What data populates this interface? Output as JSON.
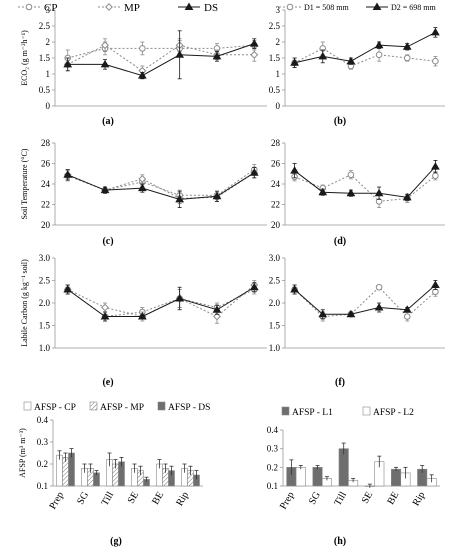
{
  "panels": {
    "a": {
      "label": "(a)"
    },
    "b": {
      "label": "(b)"
    },
    "c": {
      "label": "(c)"
    },
    "d": {
      "label": "(d)"
    },
    "e": {
      "label": "(e)"
    },
    "f": {
      "label": "(f)"
    },
    "g": {
      "label": "(g)"
    },
    "h": {
      "label": "(h)"
    }
  },
  "colors": {
    "black": "#1a1a1a",
    "grey": "#8a8a8a",
    "hatch": "#b5b5b5",
    "dark_bar": "#6e6e6e",
    "white": "#ffffff"
  },
  "chart_data": [
    {
      "id": "a",
      "type": "line",
      "ylabel": "ECO₂ (g m⁻²h⁻¹)",
      "ylim": [
        0,
        3
      ],
      "yticks": [
        "0",
        "0.5",
        "1",
        "1.5",
        "2",
        "2.5",
        "3"
      ],
      "legend": {
        "position": "top",
        "entries": [
          "CP",
          "MP",
          "DS"
        ]
      },
      "series": [
        {
          "name": "CP",
          "marker": "open-circle",
          "line": "dotted",
          "values": [
            1.5,
            1.8,
            1.8,
            1.8,
            1.8,
            1.9
          ],
          "err": [
            0.25,
            0.2,
            0.2,
            0.25,
            0.15,
            0.15
          ]
        },
        {
          "name": "MP",
          "marker": "open-diamond",
          "line": "dotted",
          "values": [
            1.3,
            1.9,
            1.1,
            1.9,
            1.6,
            1.6
          ],
          "err": [
            0.2,
            0.2,
            0.15,
            0.2,
            0.15,
            0.2
          ]
        },
        {
          "name": "DS",
          "marker": "filled-triangle",
          "line": "solid",
          "values": [
            1.3,
            1.3,
            0.95,
            1.6,
            1.55,
            1.95
          ],
          "err": [
            0.2,
            0.15,
            0.1,
            0.75,
            0.15,
            0.15
          ]
        }
      ]
    },
    {
      "id": "b",
      "type": "line",
      "ylim": [
        0,
        3
      ],
      "yticks": [
        "0",
        "0.5",
        "1",
        "1.5",
        "2",
        "2.5",
        "3"
      ],
      "legend": {
        "position": "top",
        "entries": [
          "D1 = 508 mm",
          "D2 = 698 mm"
        ]
      },
      "series": [
        {
          "name": "D1 = 508 mm",
          "marker": "open-circle",
          "line": "dotted",
          "values": [
            1.35,
            1.8,
            1.25,
            1.6,
            1.5,
            1.4
          ],
          "err": [
            0.15,
            0.2,
            0.1,
            0.2,
            0.1,
            0.15
          ]
        },
        {
          "name": "D2 = 698 mm",
          "marker": "filled-triangle",
          "line": "solid",
          "values": [
            1.35,
            1.55,
            1.4,
            1.9,
            1.85,
            2.3
          ],
          "err": [
            0.15,
            0.2,
            0.1,
            0.1,
            0.1,
            0.15
          ]
        }
      ]
    },
    {
      "id": "c",
      "type": "line",
      "ylabel": "Soil Temperature (°C)",
      "ylim": [
        20,
        28
      ],
      "yticks": [
        "20",
        "22",
        "24",
        "26",
        "28"
      ],
      "series": [
        {
          "name": "CP",
          "marker": "open-circle",
          "line": "dotted",
          "values": [
            24.8,
            23.4,
            24.2,
            22.9,
            22.9,
            25.4
          ],
          "err": [
            0.5,
            0.3,
            0.4,
            0.5,
            0.4,
            0.5
          ]
        },
        {
          "name": "MP",
          "marker": "open-diamond",
          "line": "dotted",
          "values": [
            24.9,
            23.4,
            24.5,
            22.6,
            22.7,
            25.1
          ],
          "err": [
            0.5,
            0.3,
            0.4,
            0.5,
            0.4,
            0.5
          ]
        },
        {
          "name": "DS",
          "marker": "filled-triangle",
          "line": "solid",
          "values": [
            24.9,
            23.4,
            23.6,
            22.5,
            22.8,
            25.1
          ],
          "err": [
            0.5,
            0.3,
            0.4,
            0.8,
            0.5,
            0.5
          ]
        }
      ]
    },
    {
      "id": "d",
      "type": "line",
      "ylim": [
        20,
        28
      ],
      "yticks": [
        "20",
        "22",
        "24",
        "26",
        "28"
      ],
      "series": [
        {
          "name": "D1 = 508 mm",
          "marker": "open-circle",
          "line": "dotted",
          "values": [
            24.7,
            23.6,
            24.9,
            22.3,
            22.6,
            24.8
          ],
          "err": [
            0.4,
            0.3,
            0.4,
            0.6,
            0.4,
            0.4
          ]
        },
        {
          "name": "D2 = 698 mm",
          "marker": "filled-triangle",
          "line": "solid",
          "values": [
            25.3,
            23.2,
            23.1,
            23.1,
            22.7,
            25.7
          ],
          "err": [
            0.7,
            0.3,
            0.3,
            0.6,
            0.3,
            0.6
          ]
        }
      ]
    },
    {
      "id": "e",
      "type": "line",
      "ylabel": "Labile Carbon (g kg⁻¹ soil)",
      "ylim": [
        1,
        3
      ],
      "yticks": [
        "1.0",
        "1.5",
        "2.0",
        "2.5",
        "3.0"
      ],
      "series": [
        {
          "name": "CP",
          "marker": "open-circle",
          "line": "dotted",
          "values": [
            2.3,
            1.7,
            1.8,
            2.1,
            1.9,
            2.3
          ],
          "err": [
            0.1,
            0.1,
            0.1,
            0.2,
            0.1,
            0.1
          ]
        },
        {
          "name": "MP",
          "marker": "open-diamond",
          "line": "dotted",
          "values": [
            2.3,
            1.9,
            1.7,
            2.1,
            1.7,
            2.4
          ],
          "err": [
            0.1,
            0.1,
            0.1,
            0.2,
            0.15,
            0.1
          ]
        },
        {
          "name": "DS",
          "marker": "filled-triangle",
          "line": "solid",
          "values": [
            2.3,
            1.7,
            1.7,
            2.1,
            1.85,
            2.35
          ],
          "err": [
            0.1,
            0.1,
            0.05,
            0.25,
            0.1,
            0.1
          ]
        }
      ]
    },
    {
      "id": "f",
      "type": "line",
      "ylim": [
        1,
        3
      ],
      "yticks": [
        "1.0",
        "1.5",
        "2.0",
        "2.5",
        "3.0"
      ],
      "series": [
        {
          "name": "D1 = 508 mm",
          "marker": "open-circle",
          "line": "dotted",
          "values": [
            2.3,
            1.7,
            1.75,
            2.35,
            1.7,
            2.25
          ],
          "err": [
            0.1,
            0.1,
            0.05,
            0.05,
            0.1,
            0.1
          ]
        },
        {
          "name": "D2 = 698 mm",
          "marker": "filled-triangle",
          "line": "solid",
          "values": [
            2.3,
            1.75,
            1.75,
            1.9,
            1.85,
            2.4
          ],
          "err": [
            0.1,
            0.1,
            0.05,
            0.1,
            0.05,
            0.1
          ]
        }
      ]
    },
    {
      "id": "g",
      "type": "bar",
      "ylabel": "AFSP (m³ m⁻³)",
      "ylim": [
        0.1,
        0.4
      ],
      "yticks": [
        "0.1",
        "0.2",
        "0.3",
        "0.4"
      ],
      "categories": [
        "Prep",
        "SG",
        "Till",
        "SE",
        "BE",
        "Rip"
      ],
      "legend": {
        "position": "top",
        "entries": [
          "AFSP - CP",
          "AFSP - MP",
          "AFSP - DS"
        ]
      },
      "series": [
        {
          "name": "AFSP - CP",
          "fill": "white",
          "values": [
            0.24,
            0.18,
            0.22,
            0.18,
            0.2,
            0.18
          ],
          "err": [
            0.02,
            0.02,
            0.03,
            0.02,
            0.02,
            0.02
          ]
        },
        {
          "name": "AFSP - MP",
          "fill": "hatched",
          "values": [
            0.23,
            0.18,
            0.2,
            0.17,
            0.18,
            0.17
          ],
          "err": [
            0.02,
            0.02,
            0.02,
            0.02,
            0.02,
            0.02
          ]
        },
        {
          "name": "AFSP - DS",
          "fill": "dark",
          "values": [
            0.25,
            0.16,
            0.21,
            0.13,
            0.17,
            0.15
          ],
          "err": [
            0.02,
            0.01,
            0.02,
            0.01,
            0.02,
            0.02
          ]
        }
      ]
    },
    {
      "id": "h",
      "type": "bar",
      "ylim": [
        0.1,
        0.4
      ],
      "yticks": [
        "0.1",
        "0.2",
        "0.3",
        "0.4"
      ],
      "categories": [
        "Prep",
        "SG",
        "Till",
        "SE",
        "BE",
        "Rip"
      ],
      "legend": {
        "position": "top",
        "entries": [
          "AFSP - L1",
          "AFSP - L2"
        ]
      },
      "series": [
        {
          "name": "AFSP - L1",
          "fill": "dark",
          "values": [
            0.2,
            0.2,
            0.3,
            0.1,
            0.19,
            0.19
          ],
          "err": [
            0.04,
            0.01,
            0.03,
            0.01,
            0.01,
            0.02
          ]
        },
        {
          "name": "AFSP - L2",
          "fill": "white",
          "values": [
            0.2,
            0.14,
            0.13,
            0.23,
            0.17,
            0.14
          ],
          "err": [
            0.01,
            0.01,
            0.01,
            0.03,
            0.03,
            0.02
          ]
        }
      ]
    }
  ]
}
